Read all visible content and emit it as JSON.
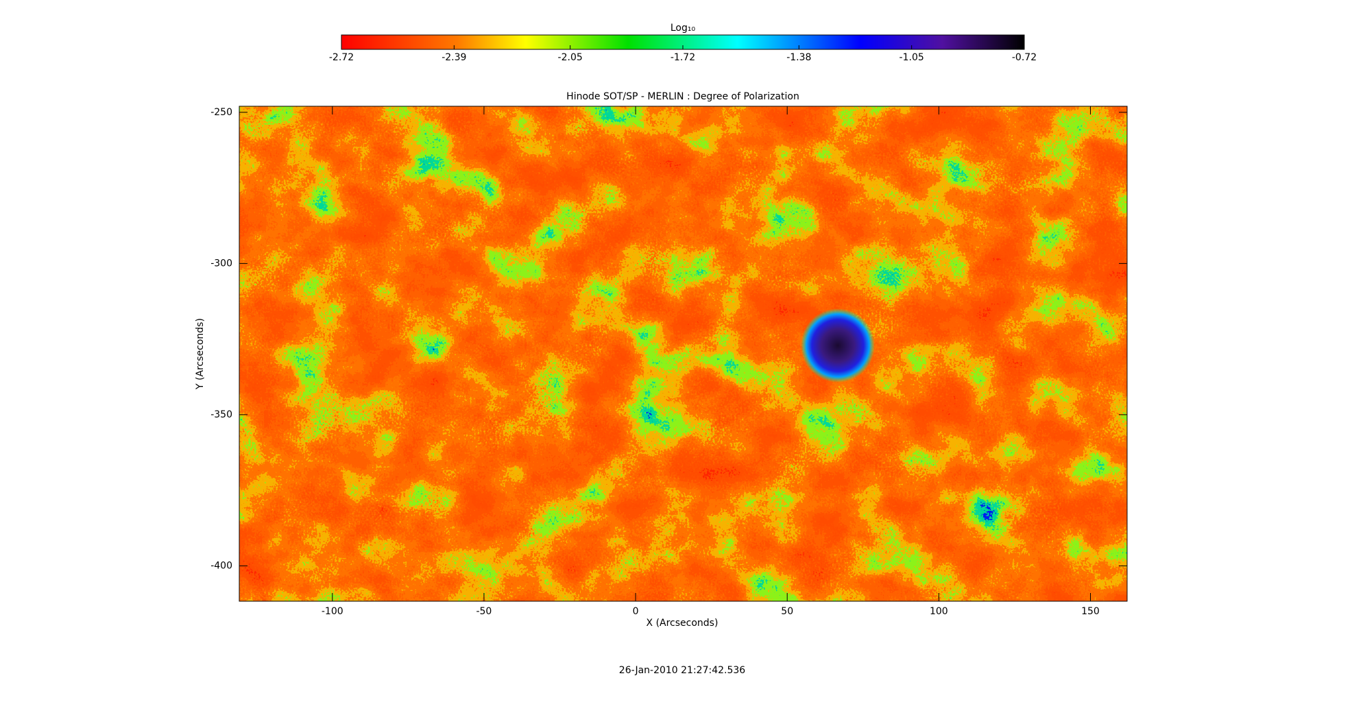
{
  "chart_data": {
    "type": "image",
    "title": "Hinode SOT/SP - MERLIN : Degree of Polarization",
    "x_label": "X (Arcseconds)",
    "y_label": "Y (Arcseconds)",
    "timestamp": "26-Jan-2010 21:27:42.536",
    "xlim": [
      -130.7,
      162.1
    ],
    "xticks": [
      -100,
      -50,
      0,
      50,
      100,
      150
    ],
    "ylim": [
      -411.7,
      -248
    ],
    "yticks": [
      -400,
      -350,
      -300,
      -250
    ],
    "colorbar": {
      "label": "Log₁₀",
      "lim": [
        -2.72,
        -0.72
      ],
      "ticks": [
        -2.72,
        -2.39,
        -2.05,
        -1.72,
        -1.38,
        -1.05,
        -0.72
      ]
    }
  }
}
